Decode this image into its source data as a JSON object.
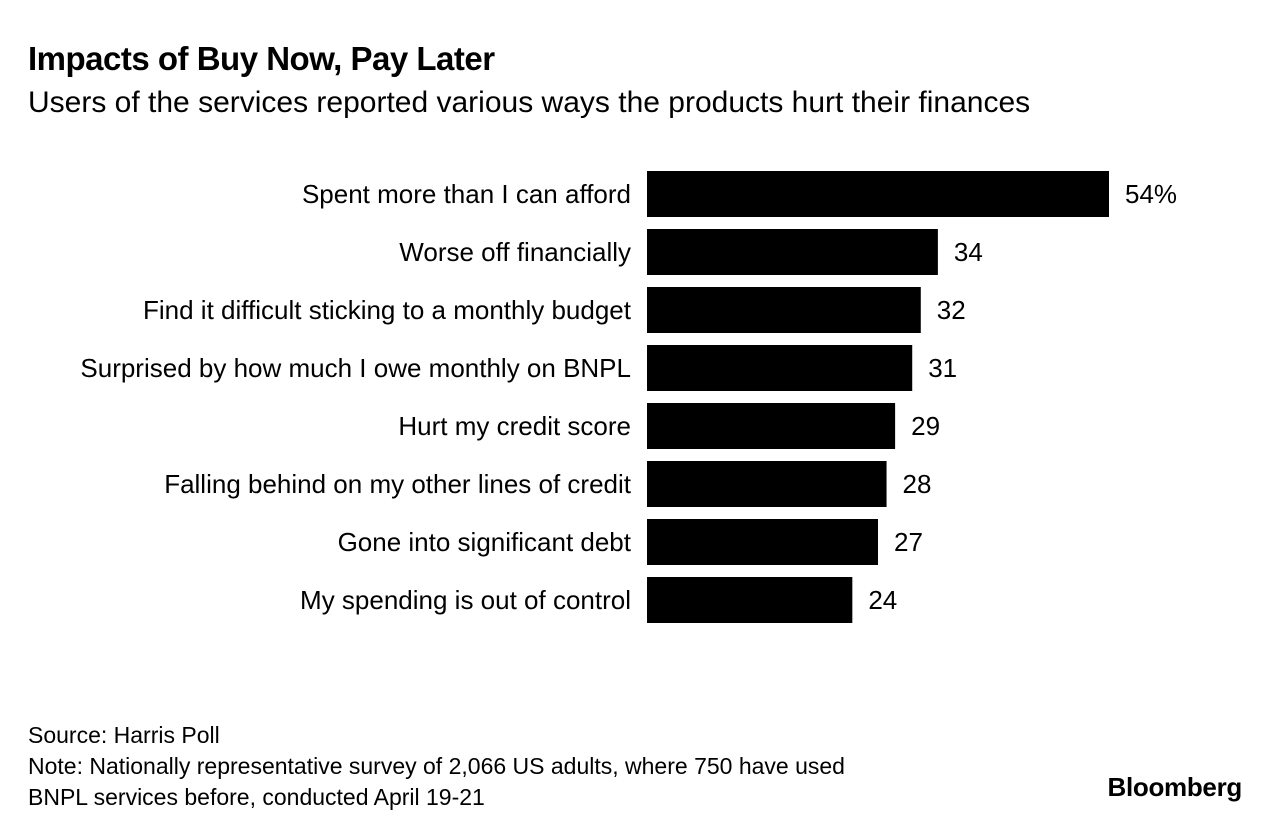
{
  "header": {
    "title": "Impacts of Buy Now, Pay Later",
    "subtitle": "Users of the services reported various ways the products hurt their finances"
  },
  "footer": {
    "source": "Source: Harris Poll",
    "note_line1": "Note: Nationally representative survey of 2,066 US adults, where 750 have used",
    "note_line2": "BNPL services before, conducted April 19-21",
    "logo": "Bloomberg"
  },
  "colors": {
    "bar": "#000000",
    "background": "#ffffff",
    "text": "#000000"
  },
  "chart_data": {
    "type": "bar",
    "orientation": "horizontal",
    "title": "Impacts of Buy Now, Pay Later",
    "subtitle": "Users of the services reported various ways the products hurt their finances",
    "categories": [
      "Spent more than I can afford",
      "Worse off financially",
      "Find it difficult sticking to a monthly budget",
      "Surprised by how much I owe monthly on BNPL",
      "Hurt my credit score",
      "Falling behind on my other lines of credit",
      "Gone into significant debt",
      "My spending is out of control"
    ],
    "values": [
      54,
      34,
      32,
      31,
      29,
      28,
      27,
      24
    ],
    "value_labels": [
      "54%",
      "34",
      "32",
      "31",
      "29",
      "28",
      "27",
      "24"
    ],
    "unit": "%",
    "xlim": [
      0,
      54
    ],
    "grid": false,
    "legend": "none"
  }
}
